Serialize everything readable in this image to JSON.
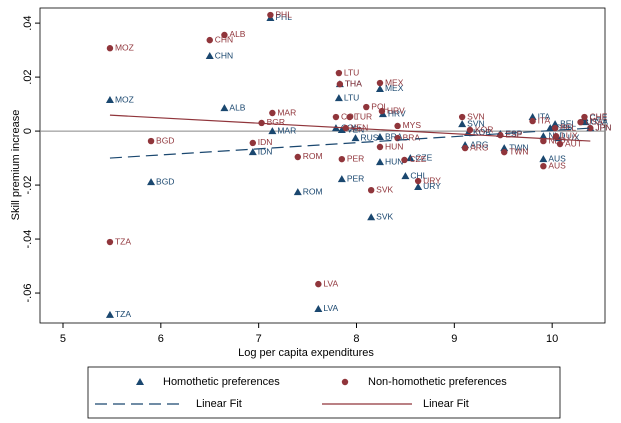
{
  "chart_data": {
    "type": "scatter",
    "xlabel": "Log per capita expenditures",
    "ylabel": "Skill premium increase",
    "xlim": [
      4.765,
      10.54
    ],
    "ylim": [
      -0.0711,
      0.0456
    ],
    "xticks": [
      5,
      6,
      7,
      8,
      9,
      10
    ],
    "yticks": [
      {
        "value": -0.06,
        "label": "-.06"
      },
      {
        "value": -0.04,
        "label": "-.04"
      },
      {
        "value": -0.02,
        "label": "-.02"
      },
      0,
      {
        "value": 0.02,
        "label": ".02"
      },
      {
        "value": 0.04,
        "label": ".04"
      }
    ],
    "reference_line": 0,
    "series": [
      {
        "name": "Homothetic preferences",
        "color": "#1a476f",
        "marker": "triangle",
        "labels": [
          "PHL",
          "MOZ",
          "CHN",
          "ALB",
          "LTU",
          "THA",
          "MEX",
          "HRV",
          "MAR",
          "IDN",
          "BGD",
          "ROM",
          "PER",
          "HUN",
          "CZE",
          "CHL",
          "URY",
          "SVK",
          "LVA",
          "TZA",
          "COL",
          "RUS",
          "BRA",
          "VEN",
          "SVN",
          "KOR",
          "ARG",
          "TWN",
          "ESP",
          "ITA",
          "AUS",
          "NLD",
          "BEL",
          "GBR",
          "LUX",
          "CHE",
          "USA",
          "JPN"
        ],
        "x": [
          7.12,
          5.48,
          6.5,
          6.65,
          7.82,
          7.83,
          8.24,
          8.27,
          7.14,
          6.94,
          5.9,
          7.4,
          7.85,
          8.24,
          8.55,
          8.5,
          8.63,
          8.15,
          7.61,
          5.48,
          7.79,
          7.99,
          8.24,
          7.85,
          9.08,
          9.14,
          9.11,
          9.51,
          9.47,
          9.8,
          9.91,
          9.91,
          10.03,
          9.98,
          10.06,
          10.33,
          10.34,
          10.39
        ],
        "values": [
          0.0419,
          0.0115,
          0.0278,
          0.0085,
          0.0122,
          0.0174,
          0.0156,
          0.0063,
          0.0,
          -0.0078,
          -0.0189,
          -0.0226,
          -0.0178,
          -0.0115,
          -0.01,
          -0.0167,
          -0.0207,
          -0.0319,
          -0.0659,
          -0.0681,
          0.0011,
          -0.0026,
          -0.0022,
          0.0004,
          0.0026,
          -0.0007,
          -0.0052,
          -0.0063,
          -0.0011,
          0.0052,
          -0.0104,
          -0.0019,
          0.0026,
          0.0011,
          -0.0026,
          0.0048,
          0.0033,
          0.0011
        ]
      },
      {
        "name": "Non-homothetic preferences",
        "color": "#90353b",
        "marker": "circle",
        "labels": [
          "PHL",
          "ALB",
          "CHN",
          "MOZ",
          "LTU",
          "THA",
          "MEX",
          "POL",
          "HRV",
          "MYS",
          "COL",
          "TUR",
          "MAR",
          "BGR",
          "VEN",
          "BRA",
          "HUN",
          "CZE",
          "URY",
          "SVK",
          "PER",
          "ROM",
          "IDN",
          "BGD",
          "TZA",
          "LVA",
          "SVN",
          "KOR",
          "ARG",
          "TWN",
          "ESP",
          "AUS",
          "NLD",
          "ITA",
          "CHE",
          "USA",
          "JPN",
          "AUT",
          "LUX",
          "BEL"
        ],
        "x": [
          7.12,
          6.65,
          6.5,
          5.48,
          7.82,
          7.83,
          8.24,
          8.1,
          8.26,
          8.42,
          7.79,
          7.93,
          7.14,
          7.03,
          7.89,
          8.42,
          8.24,
          8.49,
          8.63,
          8.15,
          7.85,
          7.4,
          6.94,
          5.9,
          5.48,
          7.61,
          9.08,
          9.16,
          9.11,
          9.51,
          9.47,
          9.91,
          9.91,
          9.8,
          10.33,
          10.29,
          10.39,
          10.08,
          10.04,
          10.03
        ],
        "values": [
          0.043,
          0.0356,
          0.0337,
          0.0307,
          0.0215,
          0.0174,
          0.0178,
          0.0089,
          0.0074,
          0.0019,
          0.0052,
          0.0052,
          0.0067,
          0.003,
          0.0011,
          -0.0026,
          -0.0059,
          -0.0107,
          -0.0185,
          -0.0219,
          -0.0104,
          -0.0096,
          -0.0044,
          -0.0037,
          -0.0411,
          -0.0567,
          0.0052,
          0.0004,
          -0.0063,
          -0.0078,
          -0.0015,
          -0.013,
          -0.0037,
          0.0037,
          0.0052,
          0.0033,
          0.0011,
          -0.0048,
          -0.0019,
          0.0011
        ]
      },
      {
        "name": "Linear Fit",
        "color": "#1a476f",
        "marker": "line",
        "dash": true,
        "x": [
          5.48,
          10.39
        ],
        "values": [
          -0.01,
          0.0011
        ]
      },
      {
        "name": "Linear Fit",
        "color": "#90353b",
        "marker": "line",
        "dash": false,
        "x": [
          5.48,
          10.39
        ],
        "values": [
          0.0059,
          -0.0037
        ]
      }
    ]
  }
}
